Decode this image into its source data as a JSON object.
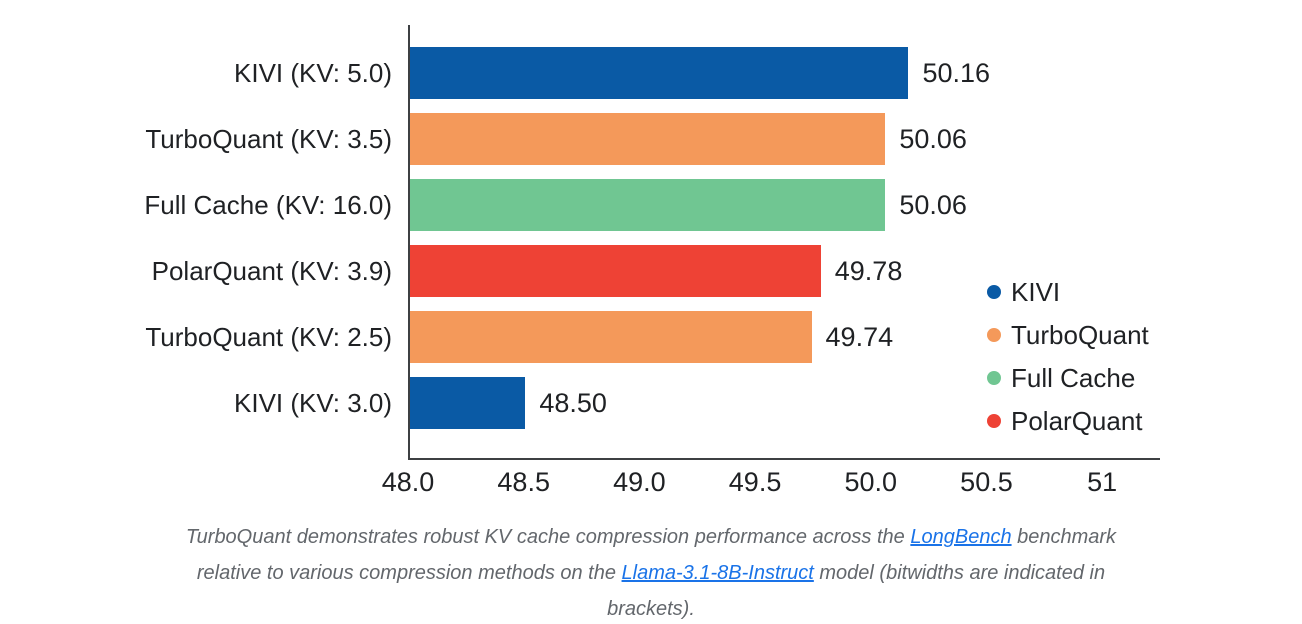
{
  "chart_data": {
    "type": "bar",
    "orientation": "horizontal",
    "title": "",
    "xlabel": "",
    "ylabel": "",
    "grid": false,
    "xlim": [
      48.0,
      51.25
    ],
    "categories": [
      "KIVI (KV: 5.0)",
      "TurboQuant (KV: 3.5)",
      "Full Cache (KV: 16.0)",
      "PolarQuant (KV: 3.9)",
      "TurboQuant (KV: 2.5)",
      "KIVI (KV: 3.0)"
    ],
    "values": [
      50.16,
      50.06,
      50.06,
      49.78,
      49.74,
      48.5
    ],
    "value_labels": [
      "50.16",
      "50.06",
      "50.06",
      "49.78",
      "49.74",
      "48.50"
    ],
    "bar_series": [
      "KIVI",
      "TurboQuant",
      "Full Cache",
      "PolarQuant",
      "TurboQuant",
      "KIVI"
    ],
    "bar_colors": [
      "#0a5aa5",
      "#f4995a",
      "#70c692",
      "#ee4235",
      "#f4995a",
      "#0a5aa5"
    ],
    "x_ticks": [
      {
        "value": 48.0,
        "label": "48.0"
      },
      {
        "value": 48.5,
        "label": "48.5"
      },
      {
        "value": 49.0,
        "label": "49.0"
      },
      {
        "value": 49.5,
        "label": "49.5"
      },
      {
        "value": 50.0,
        "label": "50.0"
      },
      {
        "value": 50.5,
        "label": "50.5"
      },
      {
        "value": 51.0,
        "label": "51"
      }
    ],
    "legend_position": "inside-lower-right",
    "legend": [
      {
        "label": "KIVI",
        "color": "#0a5aa5"
      },
      {
        "label": "TurboQuant",
        "color": "#f4995a"
      },
      {
        "label": "Full Cache",
        "color": "#70c692"
      },
      {
        "label": "PolarQuant",
        "color": "#ee4235"
      }
    ],
    "axis_color": "#3d4043"
  },
  "caption": {
    "text_color": "#63676c",
    "link_color": "#1a73e8",
    "lines": [
      [
        {
          "type": "text",
          "text": "TurboQuant demonstrates robust KV cache compression performance across the "
        },
        {
          "type": "link",
          "text": "LongBench"
        },
        {
          "type": "text",
          "text": " benchmark"
        }
      ],
      [
        {
          "type": "text",
          "text": "relative to various compression methods on the "
        },
        {
          "type": "link",
          "text": "Llama-3.1-8B-Instruct"
        },
        {
          "type": "text",
          "text": " model (bitwidths are indicated in"
        }
      ],
      [
        {
          "type": "text",
          "text": "brackets)."
        }
      ]
    ]
  }
}
